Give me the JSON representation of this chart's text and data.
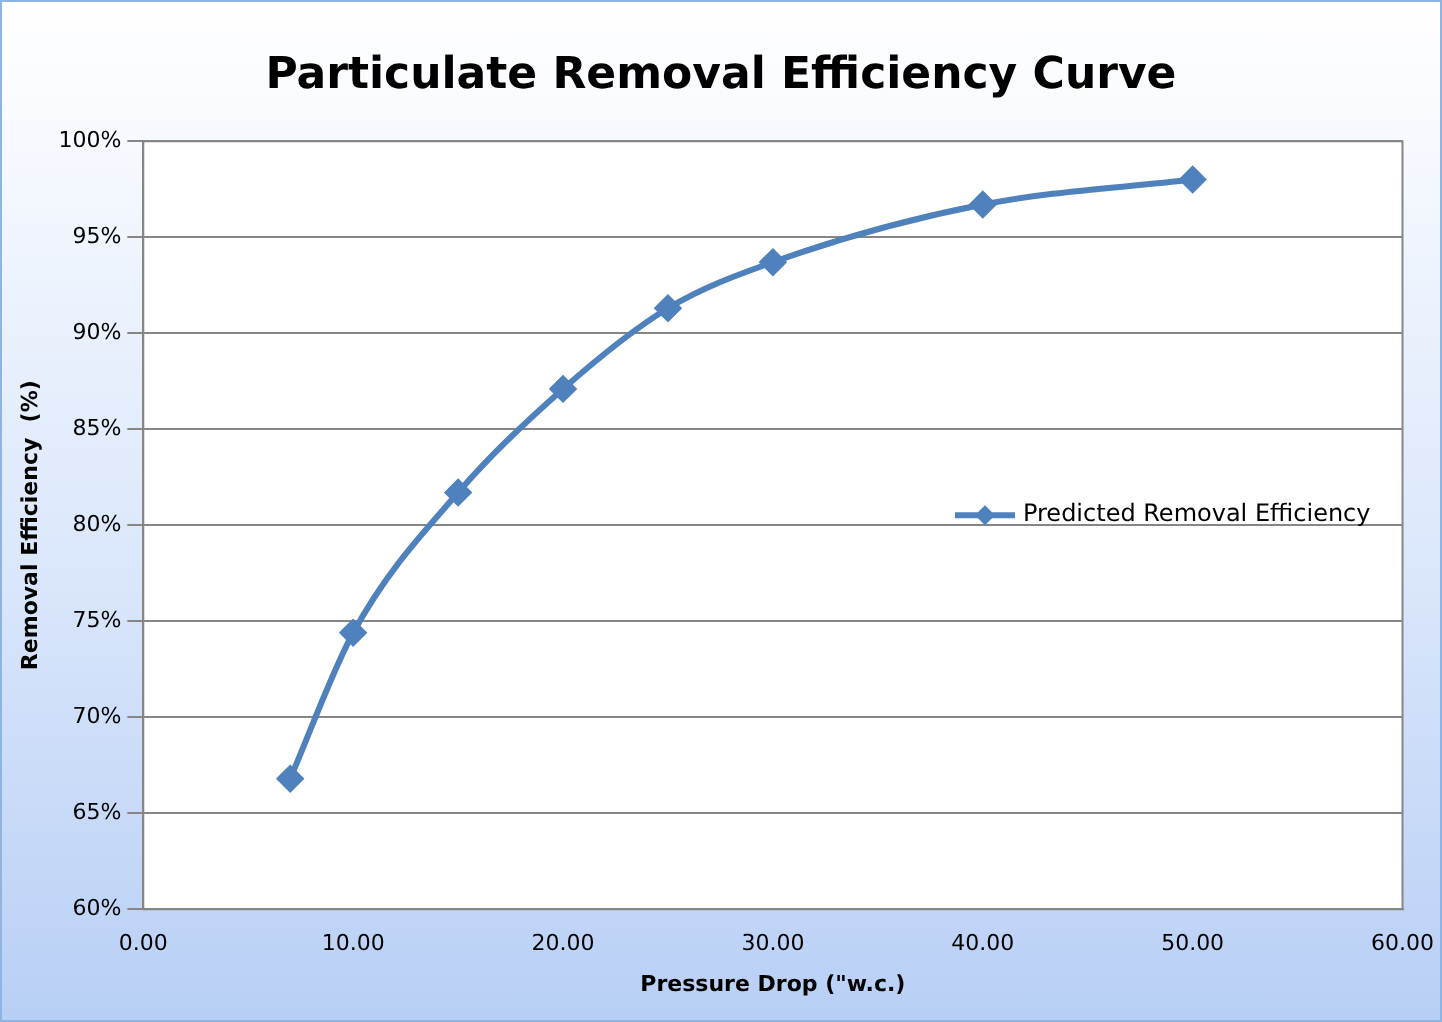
{
  "chart_data": {
    "type": "line",
    "title": "Particulate Removal Efficiency Curve",
    "xlabel": "Pressure Drop (\"w.c.)",
    "ylabel": "Removal Efficiency  (%)",
    "x": [
      7,
      10,
      15,
      20,
      25,
      30,
      40,
      50
    ],
    "series": [
      {
        "name": "Predicted Removal Efficiency",
        "color": "#4f81bd",
        "values": [
          66.8,
          74.4,
          81.7,
          87.1,
          91.3,
          93.7,
          96.7,
          98.0
        ]
      }
    ],
    "xlim": [
      0,
      60
    ],
    "xticks": [
      {
        "value": 0,
        "label": "0.00"
      },
      {
        "value": 10,
        "label": "10.00"
      },
      {
        "value": 20,
        "label": "20.00"
      },
      {
        "value": 30,
        "label": "30.00"
      },
      {
        "value": 40,
        "label": "40.00"
      },
      {
        "value": 50,
        "label": "50.00"
      },
      {
        "value": 60,
        "label": "60.00"
      }
    ],
    "ylim": [
      60,
      100
    ],
    "yticks": [
      {
        "value": 60,
        "label": "60%"
      },
      {
        "value": 65,
        "label": "65%"
      },
      {
        "value": 70,
        "label": "70%"
      },
      {
        "value": 75,
        "label": "75%"
      },
      {
        "value": 80,
        "label": "80%"
      },
      {
        "value": 85,
        "label": "85%"
      },
      {
        "value": 90,
        "label": "90%"
      },
      {
        "value": 95,
        "label": "95%"
      },
      {
        "value": 100,
        "label": "100%"
      }
    ],
    "grid": "y",
    "legend": "right",
    "marker": "diamond",
    "line_style": "solid"
  }
}
